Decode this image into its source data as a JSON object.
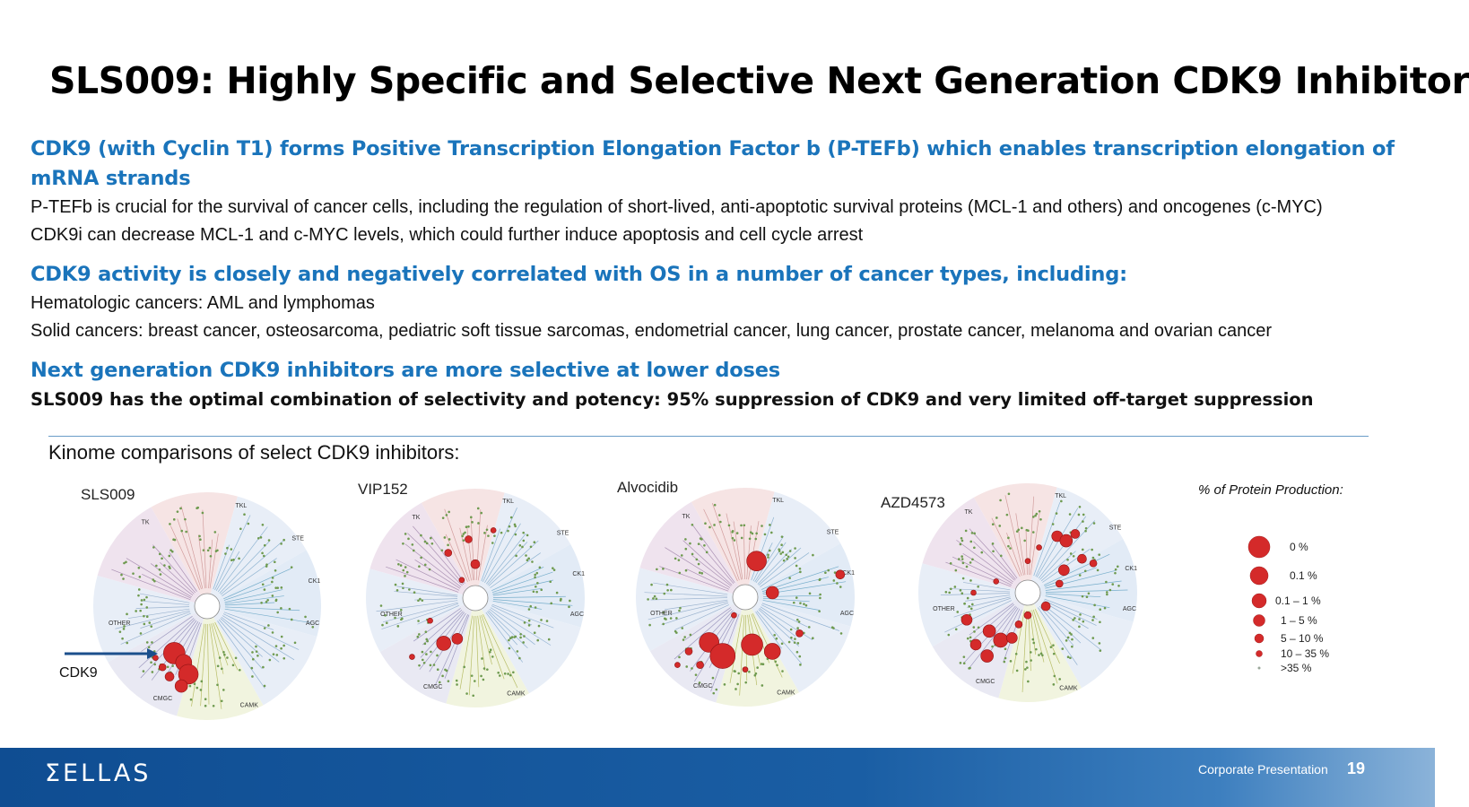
{
  "slide": {
    "title": "SLS009: Highly Specific and Selective Next Generation CDK9 Inhibitor",
    "sections": [
      {
        "heading": "CDK9 (with Cyclin T1) forms Positive Transcription Elongation Factor b (P-TEFb) which enables transcription elongation of mRNA strands",
        "lines": [
          "P-TEFb is crucial for the survival of cancer cells, including the regulation of short-lived, anti-apoptotic survival proteins (MCL-1 and others) and oncogenes (c-MYC)",
          "CDK9i can decrease MCL-1 and c-MYC levels, which could further induce apoptosis and cell cycle arrest"
        ]
      },
      {
        "heading": "CDK9 activity is closely and negatively correlated with OS in a number of cancer types, including:",
        "lines": [
          "Hematologic cancers: AML and lymphomas",
          "Solid cancers: breast cancer, osteosarcoma, pediatric soft tissue sarcomas, endometrial cancer, lung cancer, prostate cancer, melanoma and ovarian cancer"
        ]
      },
      {
        "heading": "Next generation CDK9 inhibitors are more selective at lower doses",
        "lines": [
          "SLS009 has the optimal combination of selectivity and potency: 95% suppression of CDK9 and very limited off-target suppression"
        ]
      }
    ]
  },
  "kinome": {
    "label": "Kinome comparisons of select CDK9 inhibitors:",
    "family_labels": [
      "TK",
      "TKL",
      "STE",
      "CK1",
      "AGC",
      "CAMK",
      "CMGC",
      "OTHER"
    ],
    "compounds": [
      "SLS009",
      "VIP152",
      "Alvocidib",
      "AZD4573"
    ],
    "arrow_label": "CDK9"
  },
  "legend": {
    "title": "% of Protein Production:",
    "items": [
      "0 %",
      "0.1 %",
      "0.1 – 1 %",
      "1 – 5 %",
      "5 – 10 %",
      "10 – 35 %",
      ">35 %"
    ]
  },
  "colors": {
    "accent_blue": "#1a74bb",
    "hit_red": "#d42a2a",
    "branch_green": "#6e9a4f",
    "footer_blue": "#0f4d92"
  },
  "footer": {
    "logo": "ΣELLAS",
    "text": "Corporate Presentation",
    "page": "19"
  }
}
